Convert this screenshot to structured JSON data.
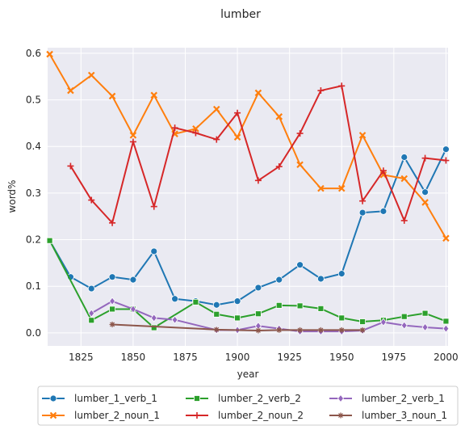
{
  "chart_data": {
    "type": "line",
    "title": "lumber",
    "xlabel": "year",
    "ylabel": "word%",
    "xlim": [
      1809,
      2001
    ],
    "ylim": [
      -0.028,
      0.612
    ],
    "xticks": [
      1825,
      1850,
      1875,
      1900,
      1925,
      1950,
      1975,
      2000
    ],
    "yticks": [
      0.0,
      0.1,
      0.2,
      0.3,
      0.4,
      0.5,
      0.6
    ],
    "grid": true,
    "legend_position": "bottom",
    "series": [
      {
        "name": "lumber_1_verb_1",
        "color": "#1f77b4",
        "marker": "circle",
        "x": [
          1810,
          1820,
          1830,
          1840,
          1850,
          1860,
          1870,
          1880,
          1890,
          1900,
          1910,
          1920,
          1930,
          1940,
          1950,
          1960,
          1970,
          1980,
          1990,
          2000
        ],
        "y": [
          0.198,
          0.12,
          0.095,
          0.12,
          0.114,
          0.175,
          0.073,
          0.068,
          0.06,
          0.068,
          0.097,
          0.114,
          0.146,
          0.116,
          0.127,
          0.258,
          0.261,
          0.377,
          0.302,
          0.394
        ]
      },
      {
        "name": "lumber_2_noun_1",
        "color": "#ff7f0e",
        "marker": "x",
        "x": [
          1810,
          1820,
          1830,
          1840,
          1850,
          1860,
          1870,
          1880,
          1890,
          1900,
          1910,
          1920,
          1930,
          1940,
          1950,
          1960,
          1970,
          1980,
          1990,
          2000
        ],
        "y": [
          0.598,
          0.52,
          0.553,
          0.508,
          0.424,
          0.51,
          0.427,
          0.438,
          0.48,
          0.42,
          0.515,
          0.464,
          0.361,
          0.31,
          0.31,
          0.424,
          0.339,
          0.331,
          0.28,
          0.203
        ]
      },
      {
        "name": "lumber_2_verb_2",
        "color": "#2ca02c",
        "marker": "square",
        "x": [
          1810,
          1830,
          1840,
          1850,
          1860,
          1880,
          1890,
          1900,
          1910,
          1920,
          1930,
          1940,
          1950,
          1960,
          1970,
          1980,
          1990,
          2000
        ],
        "y": [
          0.198,
          0.027,
          0.051,
          0.051,
          0.011,
          0.066,
          0.04,
          0.032,
          0.041,
          0.059,
          0.058,
          0.052,
          0.032,
          0.024,
          0.027,
          0.035,
          0.042,
          0.025
        ]
      },
      {
        "name": "lumber_2_noun_2",
        "color": "#d62728",
        "marker": "plus",
        "x": [
          1820,
          1830,
          1840,
          1850,
          1860,
          1870,
          1880,
          1890,
          1900,
          1910,
          1920,
          1930,
          1940,
          1950,
          1960,
          1970,
          1980,
          1990,
          2000
        ],
        "y": [
          0.358,
          0.285,
          0.236,
          0.41,
          0.271,
          0.44,
          0.429,
          0.415,
          0.472,
          0.327,
          0.357,
          0.428,
          0.52,
          0.53,
          0.283,
          0.348,
          0.241,
          0.375,
          0.37
        ]
      },
      {
        "name": "lumber_2_verb_1",
        "color": "#9467bd",
        "marker": "diamond",
        "x": [
          1830,
          1840,
          1850,
          1860,
          1870,
          1890,
          1900,
          1910,
          1920,
          1930,
          1940,
          1950,
          1960,
          1970,
          1980,
          1990,
          2000
        ],
        "y": [
          0.042,
          0.068,
          0.051,
          0.032,
          0.028,
          0.006,
          0.006,
          0.015,
          0.009,
          0.003,
          0.003,
          0.003,
          0.005,
          0.023,
          0.016,
          0.012,
          0.009
        ]
      },
      {
        "name": "lumber_3_noun_1",
        "color": "#8c564b",
        "marker": "star",
        "x": [
          1840,
          1890,
          1910,
          1920,
          1930,
          1940,
          1950,
          1960
        ],
        "y": [
          0.018,
          0.007,
          0.005,
          0.006,
          0.006,
          0.006,
          0.006,
          0.006
        ]
      }
    ]
  }
}
